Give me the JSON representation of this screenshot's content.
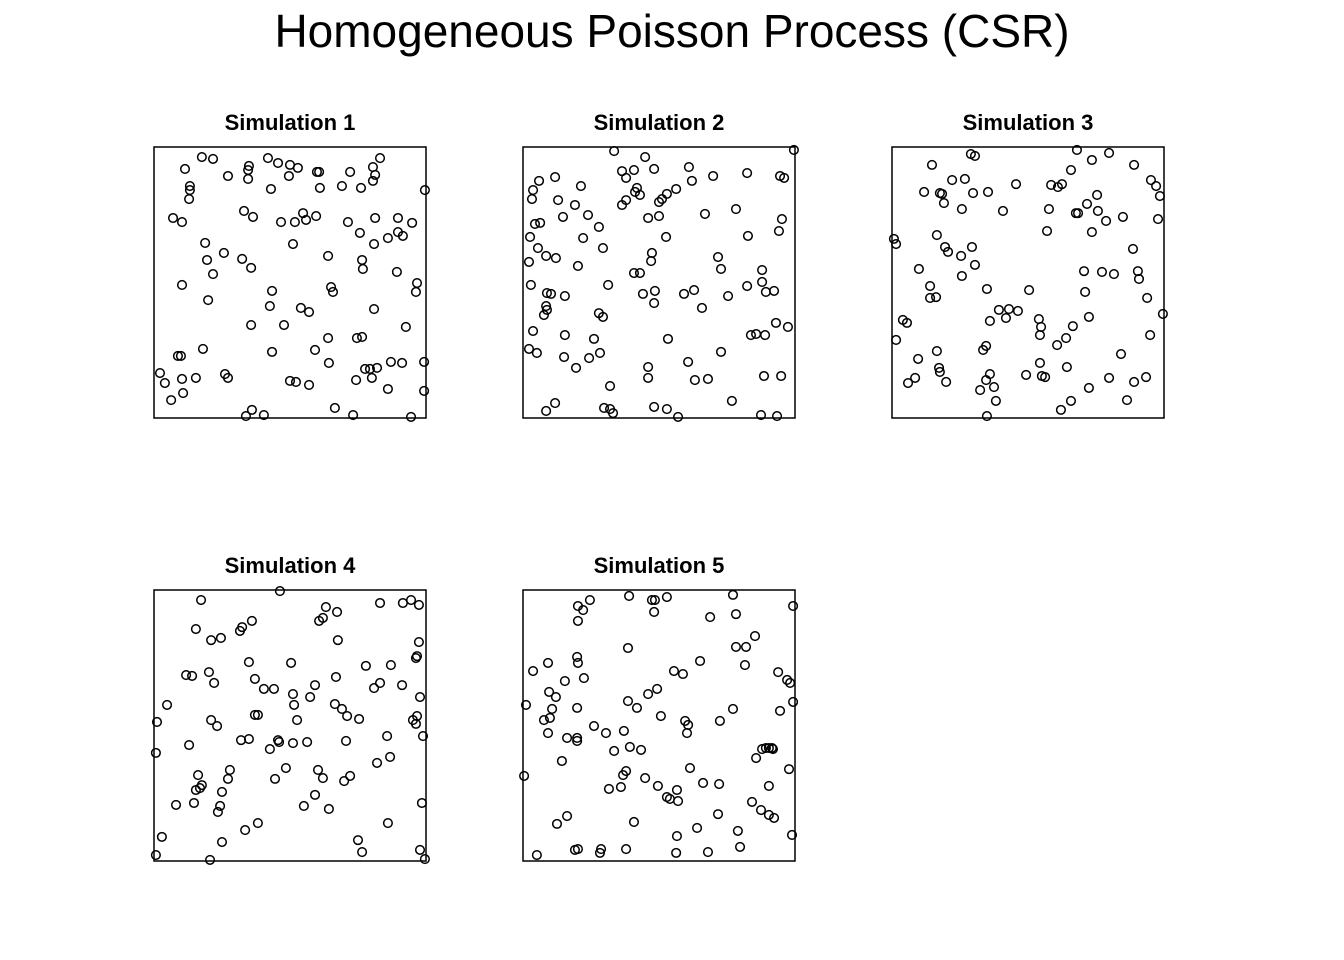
{
  "title": "Homogeneous Poisson Process (CSR)",
  "chart_data": [
    {
      "type": "scatter",
      "title": "Simulation 1",
      "color": "#000000",
      "xlim": [
        0,
        1
      ],
      "ylim": [
        0,
        1
      ],
      "x": [
        0.114,
        0.176,
        0.217,
        0.349,
        0.346,
        0.419,
        0.456,
        0.5,
        0.496,
        0.529,
        0.599,
        0.607,
        0.721,
        0.805,
        0.831,
        0.813,
        0.805,
        0.272,
        0.346,
        0.132,
        0.132,
        0.129,
        0.43,
        0.61,
        0.691,
        0.761,
        0.996,
        0.07,
        0.103,
        0.331,
        0.364,
        0.467,
        0.548,
        0.559,
        0.596,
        0.518,
        0.713,
        0.757,
        0.813,
        0.897,
        0.949,
        0.86,
        0.897,
        0.915,
        0.809,
        0.511,
        0.188,
        0.257,
        0.324,
        0.195,
        0.217,
        0.357,
        0.64,
        0.765,
        0.768,
        0.893,
        0.967,
        0.103,
        0.434,
        0.651,
        0.658,
        0.963,
        0.199,
        0.426,
        0.54,
        0.809,
        0.357,
        0.478,
        0.57,
        0.926,
        0.64,
        0.746,
        0.765,
        0.18,
        0.434,
        0.592,
        0.088,
        0.099,
        0.643,
        0.776,
        0.794,
        0.82,
        0.871,
        0.912,
        0.993,
        0.022,
        0.04,
        0.103,
        0.154,
        0.261,
        0.272,
        0.5,
        0.522,
        0.57,
        0.743,
        0.801,
        0.993,
        0.107,
        0.063,
        0.86,
        0.36,
        0.338,
        0.404,
        0.665,
        0.732,
        0.945
      ],
      "y": [
        0.919,
        0.963,
        0.956,
        0.93,
        0.915,
        0.959,
        0.941,
        0.934,
        0.893,
        0.923,
        0.908,
        0.908,
        0.908,
        0.926,
        0.959,
        0.897,
        0.875,
        0.893,
        0.882,
        0.856,
        0.841,
        0.808,
        0.845,
        0.849,
        0.856,
        0.849,
        0.841,
        0.738,
        0.723,
        0.764,
        0.742,
        0.723,
        0.756,
        0.731,
        0.745,
        0.723,
        0.723,
        0.683,
        0.738,
        0.738,
        0.72,
        0.664,
        0.686,
        0.672,
        0.642,
        0.642,
        0.646,
        0.609,
        0.587,
        0.583,
        0.531,
        0.554,
        0.598,
        0.583,
        0.55,
        0.539,
        0.498,
        0.491,
        0.469,
        0.483,
        0.465,
        0.465,
        0.435,
        0.413,
        0.406,
        0.402,
        0.343,
        0.343,
        0.391,
        0.336,
        0.295,
        0.295,
        0.299,
        0.255,
        0.244,
        0.251,
        0.229,
        0.229,
        0.203,
        0.181,
        0.181,
        0.185,
        0.207,
        0.203,
        0.207,
        0.166,
        0.129,
        0.144,
        0.148,
        0.162,
        0.148,
        0.137,
        0.133,
        0.122,
        0.14,
        0.148,
        0.1,
        0.092,
        0.066,
        0.107,
        0.03,
        0.007,
        0.011,
        0.037,
        0.011,
        0.004
      ]
    },
    {
      "type": "scatter",
      "title": "Simulation 2",
      "color": "#000000",
      "xlim": [
        0,
        1
      ],
      "ylim": [
        0,
        1
      ],
      "x": [
        0.335,
        0.996,
        0.449,
        0.364,
        0.408,
        0.482,
        0.61,
        0.379,
        0.118,
        0.059,
        0.037,
        0.033,
        0.213,
        0.419,
        0.412,
        0.43,
        0.379,
        0.364,
        0.529,
        0.511,
        0.5,
        0.563,
        0.621,
        0.699,
        0.824,
        0.945,
        0.96,
        0.129,
        0.191,
        0.147,
        0.239,
        0.279,
        0.044,
        0.063,
        0.46,
        0.5,
        0.669,
        0.783,
        0.952,
        0.941,
        0.026,
        0.055,
        0.221,
        0.294,
        0.526,
        0.827,
        0.085,
        0.022,
        0.121,
        0.202,
        0.474,
        0.471,
        0.43,
        0.408,
        0.717,
        0.728,
        0.879,
        0.879,
        0.824,
        0.923,
        0.893,
        0.029,
        0.313,
        0.088,
        0.103,
        0.085,
        0.088,
        0.154,
        0.441,
        0.485,
        0.482,
        0.592,
        0.629,
        0.658,
        0.754,
        0.279,
        0.294,
        0.037,
        0.077,
        0.154,
        0.261,
        0.533,
        0.283,
        0.243,
        0.022,
        0.051,
        0.151,
        0.195,
        0.728,
        0.838,
        0.857,
        0.89,
        0.93,
        0.974,
        0.607,
        0.46,
        0.46,
        0.632,
        0.68,
        0.886,
        0.949,
        0.32,
        0.118,
        0.085,
        0.298,
        0.32,
        0.331,
        0.482,
        0.529,
        0.57,
        0.768,
        0.875,
        0.934
      ],
      "y": [
        0.985,
        0.989,
        0.963,
        0.911,
        0.915,
        0.919,
        0.926,
        0.886,
        0.889,
        0.875,
        0.841,
        0.808,
        0.856,
        0.849,
        0.834,
        0.823,
        0.804,
        0.786,
        0.827,
        0.808,
        0.797,
        0.845,
        0.875,
        0.893,
        0.904,
        0.893,
        0.886,
        0.804,
        0.786,
        0.742,
        0.749,
        0.705,
        0.716,
        0.72,
        0.738,
        0.745,
        0.753,
        0.771,
        0.734,
        0.69,
        0.668,
        0.627,
        0.664,
        0.627,
        0.668,
        0.672,
        0.598,
        0.576,
        0.59,
        0.561,
        0.609,
        0.579,
        0.535,
        0.535,
        0.594,
        0.55,
        0.546,
        0.502,
        0.487,
        0.469,
        0.465,
        0.491,
        0.491,
        0.461,
        0.458,
        0.413,
        0.399,
        0.45,
        0.458,
        0.469,
        0.424,
        0.458,
        0.472,
        0.406,
        0.45,
        0.387,
        0.373,
        0.321,
        0.38,
        0.306,
        0.292,
        0.292,
        0.24,
        0.221,
        0.255,
        0.24,
        0.225,
        0.185,
        0.244,
        0.306,
        0.31,
        0.306,
        0.351,
        0.336,
        0.207,
        0.188,
        0.148,
        0.14,
        0.144,
        0.155,
        0.155,
        0.118,
        0.055,
        0.026,
        0.037,
        0.033,
        0.018,
        0.041,
        0.033,
        0.004,
        0.063,
        0.011,
        0.007
      ]
    },
    {
      "type": "scatter",
      "title": "Simulation 3",
      "color": "#000000",
      "xlim": [
        0,
        1
      ],
      "ylim": [
        0,
        1
      ],
      "x": [
        0.29,
        0.305,
        0.68,
        0.798,
        0.735,
        0.147,
        0.89,
        0.658,
        0.221,
        0.268,
        0.456,
        0.585,
        0.61,
        0.625,
        0.952,
        0.971,
        0.118,
        0.176,
        0.184,
        0.298,
        0.353,
        0.754,
        0.985,
        0.577,
        0.257,
        0.408,
        0.676,
        0.684,
        0.717,
        0.757,
        0.787,
        0.849,
        0.191,
        0.978,
        0.735,
        0.57,
        0.165,
        0.195,
        0.206,
        0.007,
        0.015,
        0.294,
        0.254,
        0.886,
        0.305,
        0.099,
        0.706,
        0.772,
        0.816,
        0.904,
        0.908,
        0.257,
        0.14,
        0.162,
        0.14,
        0.349,
        0.504,
        0.71,
        0.938,
        0.43,
        0.393,
        0.463,
        0.419,
        0.36,
        0.54,
        0.548,
        0.665,
        0.724,
        0.64,
        0.544,
        0.996,
        0.949,
        0.04,
        0.055,
        0.015,
        0.165,
        0.335,
        0.346,
        0.096,
        0.607,
        0.842,
        0.544,
        0.173,
        0.176,
        0.36,
        0.493,
        0.551,
        0.563,
        0.643,
        0.085,
        0.059,
        0.199,
        0.346,
        0.324,
        0.375,
        0.724,
        0.798,
        0.89,
        0.934,
        0.382,
        0.658,
        0.621,
        0.864,
        0.349
      ],
      "y": [
        0.974,
        0.967,
        0.989,
        0.978,
        0.952,
        0.934,
        0.934,
        0.915,
        0.878,
        0.882,
        0.863,
        0.86,
        0.852,
        0.863,
        0.878,
        0.856,
        0.834,
        0.83,
        0.827,
        0.83,
        0.834,
        0.823,
        0.819,
        0.771,
        0.771,
        0.764,
        0.756,
        0.756,
        0.79,
        0.764,
        0.727,
        0.742,
        0.793,
        0.734,
        0.686,
        0.69,
        0.675,
        0.631,
        0.613,
        0.661,
        0.642,
        0.631,
        0.598,
        0.624,
        0.565,
        0.55,
        0.542,
        0.539,
        0.531,
        0.542,
        0.513,
        0.524,
        0.487,
        0.446,
        0.443,
        0.476,
        0.472,
        0.465,
        0.443,
        0.402,
        0.399,
        0.395,
        0.369,
        0.358,
        0.365,
        0.336,
        0.339,
        0.373,
        0.295,
        0.306,
        0.384,
        0.306,
        0.362,
        0.351,
        0.288,
        0.247,
        0.251,
        0.266,
        0.218,
        0.269,
        0.236,
        0.203,
        0.185,
        0.17,
        0.162,
        0.159,
        0.155,
        0.151,
        0.188,
        0.148,
        0.129,
        0.133,
        0.14,
        0.103,
        0.114,
        0.111,
        0.148,
        0.133,
        0.151,
        0.063,
        0.063,
        0.03,
        0.066,
        0.007
      ]
    },
    {
      "type": "scatter",
      "title": "Simulation 4",
      "color": "#000000",
      "xlim": [
        0,
        1
      ],
      "ylim": [
        0,
        1
      ],
      "x": [
        0.463,
        0.173,
        0.831,
        0.915,
        0.945,
        0.974,
        0.632,
        0.673,
        0.621,
        0.607,
        0.36,
        0.324,
        0.316,
        0.154,
        0.246,
        0.21,
        0.676,
        0.974,
        0.967,
        0.963,
        0.349,
        0.504,
        0.779,
        0.871,
        0.118,
        0.14,
        0.202,
        0.221,
        0.371,
        0.404,
        0.441,
        0.592,
        0.669,
        0.831,
        0.809,
        0.912,
        0.978,
        0.048,
        0.511,
        0.574,
        0.515,
        0.665,
        0.691,
        0.71,
        0.754,
        0.967,
        0.952,
        0.963,
        0.011,
        0.21,
        0.232,
        0.371,
        0.382,
        0.526,
        0.32,
        0.349,
        0.456,
        0.46,
        0.511,
        0.563,
        0.706,
        0.857,
        0.989,
        0.129,
        0.426,
        0.007,
        0.868,
        0.485,
        0.603,
        0.279,
        0.162,
        0.272,
        0.445,
        0.621,
        0.721,
        0.699,
        0.82,
        0.169,
        0.154,
        0.176,
        0.25,
        0.081,
        0.147,
        0.592,
        0.551,
        0.643,
        0.243,
        0.235,
        0.985,
        0.86,
        0.382,
        0.335,
        0.029,
        0.25,
        0.75,
        0.765,
        0.007,
        0.206,
        0.978,
        0.996
      ],
      "y": [
        0.996,
        0.963,
        0.952,
        0.952,
        0.963,
        0.945,
        0.937,
        0.919,
        0.897,
        0.886,
        0.886,
        0.863,
        0.849,
        0.856,
        0.823,
        0.815,
        0.815,
        0.808,
        0.756,
        0.749,
        0.734,
        0.731,
        0.72,
        0.723,
        0.686,
        0.683,
        0.697,
        0.657,
        0.672,
        0.635,
        0.635,
        0.649,
        0.679,
        0.657,
        0.638,
        0.649,
        0.605,
        0.576,
        0.616,
        0.605,
        0.576,
        0.579,
        0.561,
        0.535,
        0.524,
        0.535,
        0.52,
        0.506,
        0.513,
        0.52,
        0.498,
        0.539,
        0.539,
        0.52,
        0.446,
        0.45,
        0.446,
        0.439,
        0.435,
        0.439,
        0.443,
        0.461,
        0.461,
        0.428,
        0.413,
        0.399,
        0.384,
        0.343,
        0.336,
        0.336,
        0.317,
        0.303,
        0.303,
        0.306,
        0.314,
        0.295,
        0.362,
        0.269,
        0.262,
        0.28,
        0.255,
        0.207,
        0.214,
        0.244,
        0.203,
        0.192,
        0.203,
        0.181,
        0.214,
        0.14,
        0.14,
        0.114,
        0.089,
        0.07,
        0.077,
        0.033,
        0.022,
        0.004,
        0.041,
        0.007
      ]
    },
    {
      "type": "scatter",
      "title": "Simulation 5",
      "color": "#000000",
      "xlim": [
        0,
        1
      ],
      "ylim": [
        0,
        1
      ],
      "x": [
        0.39,
        0.474,
        0.485,
        0.529,
        0.772,
        0.246,
        0.202,
        0.221,
        0.993,
        0.482,
        0.688,
        0.783,
        0.202,
        0.853,
        0.386,
        0.783,
        0.82,
        0.651,
        0.199,
        0.202,
        0.092,
        0.037,
        0.555,
        0.588,
        0.816,
        0.938,
        0.971,
        0.982,
        0.224,
        0.154,
        0.493,
        0.46,
        0.386,
        0.419,
        0.096,
        0.121,
        0.011,
        0.107,
        0.199,
        0.993,
        0.507,
        0.772,
        0.945,
        0.077,
        0.099,
        0.596,
        0.607,
        0.724,
        0.261,
        0.092,
        0.162,
        0.199,
        0.199,
        0.305,
        0.371,
        0.603,
        0.393,
        0.434,
        0.335,
        0.879,
        0.893,
        0.904,
        0.915,
        0.919,
        0.857,
        0.143,
        0.614,
        0.379,
        0.368,
        0.004,
        0.449,
        0.978,
        0.36,
        0.496,
        0.662,
        0.721,
        0.904,
        0.566,
        0.316,
        0.529,
        0.54,
        0.57,
        0.842,
        0.875,
        0.904,
        0.923,
        0.162,
        0.125,
        0.408,
        0.717,
        0.64,
        0.79,
        0.989,
        0.566,
        0.798,
        0.051,
        0.191,
        0.202,
        0.287,
        0.283,
        0.379,
        0.563,
        0.68
      ],
      "y": [
        0.978,
        0.963,
        0.963,
        0.974,
        0.982,
        0.963,
        0.941,
        0.926,
        0.941,
        0.919,
        0.9,
        0.911,
        0.886,
        0.83,
        0.786,
        0.79,
        0.79,
        0.738,
        0.753,
        0.731,
        0.731,
        0.701,
        0.701,
        0.69,
        0.723,
        0.697,
        0.668,
        0.657,
        0.675,
        0.664,
        0.635,
        0.616,
        0.59,
        0.565,
        0.624,
        0.605,
        0.576,
        0.561,
        0.565,
        0.587,
        0.535,
        0.561,
        0.554,
        0.52,
        0.528,
        0.517,
        0.502,
        0.517,
        0.498,
        0.472,
        0.454,
        0.454,
        0.443,
        0.472,
        0.48,
        0.472,
        0.421,
        0.41,
        0.406,
        0.413,
        0.417,
        0.417,
        0.417,
        0.413,
        0.38,
        0.369,
        0.343,
        0.332,
        0.317,
        0.314,
        0.306,
        0.339,
        0.273,
        0.277,
        0.288,
        0.284,
        0.277,
        0.262,
        0.266,
        0.236,
        0.229,
        0.221,
        0.218,
        0.188,
        0.17,
        0.159,
        0.166,
        0.137,
        0.144,
        0.173,
        0.122,
        0.111,
        0.096,
        0.092,
        0.052,
        0.022,
        0.041,
        0.044,
        0.044,
        0.03,
        0.044,
        0.03,
        0.033
      ]
    }
  ]
}
